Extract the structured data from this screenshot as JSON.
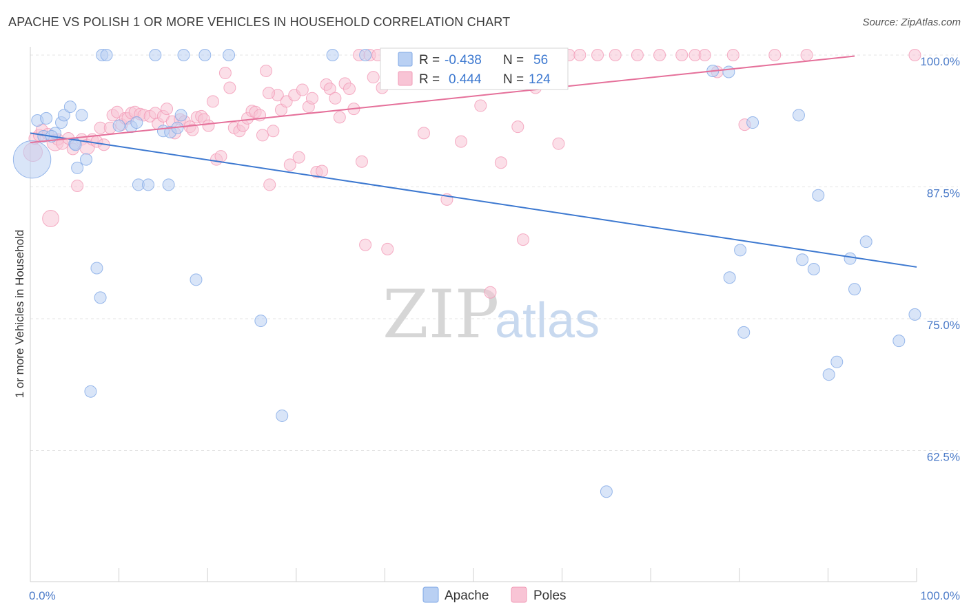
{
  "title": "APACHE VS POLISH 1 OR MORE VEHICLES IN HOUSEHOLD CORRELATION CHART",
  "source": "Source: ZipAtlas.com",
  "colors": {
    "apache": "#7fa8e6",
    "apache_fill": "#b9d0f3",
    "apache_line": "#3c78d0",
    "poles": "#f29ab6",
    "poles_fill": "#f8c4d5",
    "poles_line": "#e5709a",
    "tick": "#4a7ac8"
  },
  "watermark": {
    "zip": "ZIP",
    "atlas": "atlas"
  },
  "legend_box": {
    "apache": {
      "r_label": "R =",
      "r_value": "-0.438",
      "n_label": "N =",
      "n_value": "56"
    },
    "poles": {
      "r_label": "R =",
      "r_value": "0.444",
      "n_label": "N =",
      "n_value": "124"
    }
  },
  "chart_data": {
    "type": "scatter",
    "xlabel": "",
    "ylabel": "1 or more Vehicles in Household",
    "xlim": [
      0,
      100
    ],
    "ylim": [
      50,
      101
    ],
    "x_tick_labels": [
      "0.0%",
      "100.0%"
    ],
    "y_ticks": [
      62.5,
      75.0,
      87.5,
      100.0
    ],
    "y_tick_labels": [
      "62.5%",
      "75.0%",
      "87.5%",
      "100.0%"
    ],
    "grid": true,
    "legend": "bottom",
    "series": [
      {
        "name": "Apache",
        "trend": {
          "x": [
            0,
            100
          ],
          "y": [
            92.6,
            79.9
          ]
        },
        "points": [
          {
            "x": 0.2,
            "y": 90.1,
            "s": 3.2
          },
          {
            "x": 0.8,
            "y": 93.8
          },
          {
            "x": 1.5,
            "y": 92.3
          },
          {
            "x": 1.8,
            "y": 94.0
          },
          {
            "x": 2.8,
            "y": 92.6
          },
          {
            "x": 3.5,
            "y": 93.6
          },
          {
            "x": 3.8,
            "y": 94.3
          },
          {
            "x": 4.5,
            "y": 95.1
          },
          {
            "x": 5.0,
            "y": 91.6
          },
          {
            "x": 5.3,
            "y": 89.3
          },
          {
            "x": 5.8,
            "y": 94.3
          },
          {
            "x": 6.3,
            "y": 90.1
          },
          {
            "x": 6.8,
            "y": 68.1
          },
          {
            "x": 7.5,
            "y": 79.8
          },
          {
            "x": 7.9,
            "y": 77.0
          },
          {
            "x": 8.1,
            "y": 100.0
          },
          {
            "x": 8.6,
            "y": 100.0
          },
          {
            "x": 10.0,
            "y": 93.3
          },
          {
            "x": 11.4,
            "y": 93.2
          },
          {
            "x": 12.2,
            "y": 87.7
          },
          {
            "x": 13.3,
            "y": 87.7
          },
          {
            "x": 14.1,
            "y": 100.0
          },
          {
            "x": 15.0,
            "y": 92.8
          },
          {
            "x": 15.6,
            "y": 87.7
          },
          {
            "x": 15.8,
            "y": 92.7
          },
          {
            "x": 16.6,
            "y": 93.1
          },
          {
            "x": 17.0,
            "y": 94.3
          },
          {
            "x": 17.3,
            "y": 100.0
          },
          {
            "x": 18.7,
            "y": 78.7
          },
          {
            "x": 19.7,
            "y": 100.0
          },
          {
            "x": 22.4,
            "y": 100.0
          },
          {
            "x": 26.0,
            "y": 74.8
          },
          {
            "x": 28.4,
            "y": 65.8
          },
          {
            "x": 34.1,
            "y": 100.0
          },
          {
            "x": 37.8,
            "y": 100.0
          },
          {
            "x": 65.0,
            "y": 58.6
          },
          {
            "x": 77.0,
            "y": 98.5
          },
          {
            "x": 78.8,
            "y": 98.4
          },
          {
            "x": 78.9,
            "y": 78.9
          },
          {
            "x": 80.1,
            "y": 81.5
          },
          {
            "x": 80.5,
            "y": 73.7
          },
          {
            "x": 81.5,
            "y": 93.6
          },
          {
            "x": 86.7,
            "y": 94.3
          },
          {
            "x": 87.1,
            "y": 80.6
          },
          {
            "x": 88.4,
            "y": 79.7
          },
          {
            "x": 88.9,
            "y": 86.7
          },
          {
            "x": 90.1,
            "y": 69.7
          },
          {
            "x": 92.5,
            "y": 80.7
          },
          {
            "x": 91.0,
            "y": 70.9
          },
          {
            "x": 93.0,
            "y": 77.8
          },
          {
            "x": 94.3,
            "y": 82.3
          },
          {
            "x": 98.0,
            "y": 72.9
          },
          {
            "x": 99.8,
            "y": 75.4
          },
          {
            "x": 2.4,
            "y": 92.3
          },
          {
            "x": 5.1,
            "y": 91.5
          },
          {
            "x": 12.0,
            "y": 93.6
          }
        ]
      },
      {
        "name": "Poles",
        "trend": {
          "x": [
            0,
            93.0
          ],
          "y": [
            91.7,
            99.9
          ]
        },
        "points": [
          {
            "x": 0.3,
            "y": 90.8,
            "s": 1.6
          },
          {
            "x": 0.5,
            "y": 92.1
          },
          {
            "x": 1.0,
            "y": 92.4
          },
          {
            "x": 1.3,
            "y": 92.9
          },
          {
            "x": 2.0,
            "y": 92.5
          },
          {
            "x": 2.3,
            "y": 84.5,
            "s": 1.4
          },
          {
            "x": 2.8,
            "y": 91.7,
            "s": 1.4
          },
          {
            "x": 3.1,
            "y": 92.0
          },
          {
            "x": 3.6,
            "y": 91.6
          },
          {
            "x": 4.3,
            "y": 92.1
          },
          {
            "x": 4.8,
            "y": 91.1
          },
          {
            "x": 5.3,
            "y": 87.6
          },
          {
            "x": 5.8,
            "y": 92.0
          },
          {
            "x": 6.4,
            "y": 91.3,
            "s": 1.3
          },
          {
            "x": 7.0,
            "y": 92.0
          },
          {
            "x": 7.5,
            "y": 91.8
          },
          {
            "x": 7.9,
            "y": 93.1
          },
          {
            "x": 8.3,
            "y": 91.5
          },
          {
            "x": 9.0,
            "y": 93.1
          },
          {
            "x": 9.3,
            "y": 94.3
          },
          {
            "x": 9.8,
            "y": 94.6
          },
          {
            "x": 10.3,
            "y": 93.4
          },
          {
            "x": 10.7,
            "y": 94.0
          },
          {
            "x": 11.0,
            "y": 94.0
          },
          {
            "x": 11.4,
            "y": 94.5
          },
          {
            "x": 11.8,
            "y": 94.6
          },
          {
            "x": 12.4,
            "y": 94.4
          },
          {
            "x": 12.8,
            "y": 94.3
          },
          {
            "x": 13.5,
            "y": 94.2
          },
          {
            "x": 14.1,
            "y": 94.5
          },
          {
            "x": 14.4,
            "y": 93.5
          },
          {
            "x": 15.0,
            "y": 94.2
          },
          {
            "x": 15.4,
            "y": 94.9
          },
          {
            "x": 16.0,
            "y": 93.7
          },
          {
            "x": 16.3,
            "y": 92.6
          },
          {
            "x": 16.9,
            "y": 93.9
          },
          {
            "x": 17.4,
            "y": 93.7
          },
          {
            "x": 18.0,
            "y": 93.2
          },
          {
            "x": 18.3,
            "y": 92.9
          },
          {
            "x": 18.8,
            "y": 94.1
          },
          {
            "x": 19.3,
            "y": 94.2
          },
          {
            "x": 19.6,
            "y": 93.9
          },
          {
            "x": 20.1,
            "y": 93.3
          },
          {
            "x": 20.6,
            "y": 95.6
          },
          {
            "x": 21.0,
            "y": 90.1
          },
          {
            "x": 21.5,
            "y": 90.4
          },
          {
            "x": 22.0,
            "y": 98.3
          },
          {
            "x": 22.5,
            "y": 96.9
          },
          {
            "x": 23.0,
            "y": 93.1
          },
          {
            "x": 23.6,
            "y": 92.8
          },
          {
            "x": 24.0,
            "y": 93.3
          },
          {
            "x": 24.5,
            "y": 94.0
          },
          {
            "x": 25.0,
            "y": 94.7
          },
          {
            "x": 25.4,
            "y": 94.6
          },
          {
            "x": 25.9,
            "y": 94.3
          },
          {
            "x": 26.2,
            "y": 92.4
          },
          {
            "x": 26.6,
            "y": 98.5
          },
          {
            "x": 27.0,
            "y": 87.7
          },
          {
            "x": 27.4,
            "y": 92.8
          },
          {
            "x": 27.9,
            "y": 96.2
          },
          {
            "x": 28.3,
            "y": 94.8
          },
          {
            "x": 28.9,
            "y": 95.6
          },
          {
            "x": 29.3,
            "y": 89.6
          },
          {
            "x": 29.8,
            "y": 96.2
          },
          {
            "x": 30.3,
            "y": 90.3
          },
          {
            "x": 30.7,
            "y": 96.7
          },
          {
            "x": 31.4,
            "y": 95.1
          },
          {
            "x": 31.8,
            "y": 95.9
          },
          {
            "x": 32.3,
            "y": 88.9
          },
          {
            "x": 32.9,
            "y": 89.0
          },
          {
            "x": 33.4,
            "y": 97.2
          },
          {
            "x": 33.8,
            "y": 96.8
          },
          {
            "x": 34.4,
            "y": 95.9
          },
          {
            "x": 34.9,
            "y": 94.1
          },
          {
            "x": 35.5,
            "y": 97.3
          },
          {
            "x": 36.0,
            "y": 96.8
          },
          {
            "x": 36.5,
            "y": 94.9
          },
          {
            "x": 37.1,
            "y": 100.0
          },
          {
            "x": 37.4,
            "y": 89.9
          },
          {
            "x": 37.8,
            "y": 82.0
          },
          {
            "x": 38.3,
            "y": 100.0
          },
          {
            "x": 38.7,
            "y": 97.9
          },
          {
            "x": 39.2,
            "y": 100.0
          },
          {
            "x": 39.7,
            "y": 96.9
          },
          {
            "x": 40.3,
            "y": 81.6
          },
          {
            "x": 40.9,
            "y": 99.6
          },
          {
            "x": 41.4,
            "y": 100.0
          },
          {
            "x": 42.0,
            "y": 97.9
          },
          {
            "x": 42.5,
            "y": 100.0
          },
          {
            "x": 43.4,
            "y": 99.9
          },
          {
            "x": 44.4,
            "y": 92.6
          },
          {
            "x": 45.3,
            "y": 99.3
          },
          {
            "x": 46.1,
            "y": 100.0
          },
          {
            "x": 47.0,
            "y": 86.3
          },
          {
            "x": 47.7,
            "y": 100.0
          },
          {
            "x": 48.6,
            "y": 91.8
          },
          {
            "x": 49.9,
            "y": 100.0
          },
          {
            "x": 50.8,
            "y": 95.2
          },
          {
            "x": 51.5,
            "y": 100.0
          },
          {
            "x": 53.1,
            "y": 89.8
          },
          {
            "x": 53.8,
            "y": 100.0
          },
          {
            "x": 55.0,
            "y": 93.2
          },
          {
            "x": 55.6,
            "y": 82.5
          },
          {
            "x": 57.0,
            "y": 96.9
          },
          {
            "x": 58.2,
            "y": 100.0
          },
          {
            "x": 59.6,
            "y": 91.6
          },
          {
            "x": 60.8,
            "y": 100.0
          },
          {
            "x": 62.0,
            "y": 100.0
          },
          {
            "x": 64.0,
            "y": 100.0
          },
          {
            "x": 66.0,
            "y": 100.0
          },
          {
            "x": 68.5,
            "y": 100.0
          },
          {
            "x": 71.0,
            "y": 100.0
          },
          {
            "x": 73.5,
            "y": 100.0
          },
          {
            "x": 75.0,
            "y": 100.0
          },
          {
            "x": 76.1,
            "y": 100.0
          },
          {
            "x": 77.5,
            "y": 98.4
          },
          {
            "x": 79.3,
            "y": 100.0
          },
          {
            "x": 80.6,
            "y": 93.4
          },
          {
            "x": 84.0,
            "y": 100.0
          },
          {
            "x": 87.6,
            "y": 100.0
          },
          {
            "x": 51.9,
            "y": 77.5
          },
          {
            "x": 26.9,
            "y": 96.4
          },
          {
            "x": 41.4,
            "y": 100.0
          },
          {
            "x": 99.8,
            "y": 100.0
          }
        ]
      }
    ]
  }
}
